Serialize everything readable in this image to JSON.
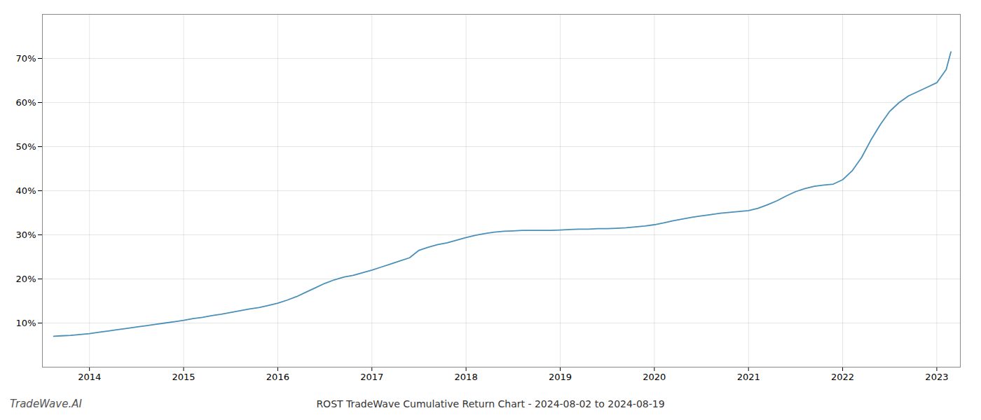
{
  "chart_data": {
    "type": "line",
    "title": "ROST TradeWave Cumulative Return Chart - 2024-08-02 to 2024-08-19",
    "annotations": [
      "TradeWave.AI"
    ],
    "x": [
      2013.62,
      2013.7,
      2013.8,
      2013.9,
      2014.0,
      2014.1,
      2014.2,
      2014.3,
      2014.4,
      2014.5,
      2014.6,
      2014.7,
      2014.8,
      2014.9,
      2015.0,
      2015.1,
      2015.2,
      2015.3,
      2015.4,
      2015.5,
      2015.6,
      2015.7,
      2015.8,
      2015.9,
      2016.0,
      2016.1,
      2016.2,
      2016.3,
      2016.4,
      2016.5,
      2016.6,
      2016.7,
      2016.8,
      2016.9,
      2017.0,
      2017.1,
      2017.2,
      2017.3,
      2017.4,
      2017.5,
      2017.6,
      2017.7,
      2017.8,
      2017.9,
      2018.0,
      2018.1,
      2018.2,
      2018.3,
      2018.4,
      2018.5,
      2018.6,
      2018.7,
      2018.8,
      2018.9,
      2019.0,
      2019.1,
      2019.2,
      2019.3,
      2019.4,
      2019.5,
      2019.6,
      2019.7,
      2019.8,
      2019.9,
      2020.0,
      2020.1,
      2020.2,
      2020.3,
      2020.4,
      2020.5,
      2020.6,
      2020.7,
      2020.8,
      2020.9,
      2021.0,
      2021.1,
      2021.2,
      2021.3,
      2021.4,
      2021.5,
      2021.6,
      2021.7,
      2021.8,
      2021.9,
      2022.0,
      2022.1,
      2022.2,
      2022.3,
      2022.4,
      2022.5,
      2022.6,
      2022.7,
      2022.8,
      2022.9,
      2023.0,
      2023.1,
      2023.15
    ],
    "values": [
      7.0,
      7.1,
      7.2,
      7.4,
      7.6,
      7.9,
      8.2,
      8.5,
      8.8,
      9.1,
      9.4,
      9.7,
      10.0,
      10.3,
      10.6,
      11.0,
      11.3,
      11.7,
      12.0,
      12.4,
      12.8,
      13.2,
      13.5,
      14.0,
      14.5,
      15.2,
      16.0,
      17.0,
      18.0,
      19.0,
      19.8,
      20.4,
      20.8,
      21.4,
      22.0,
      22.7,
      23.4,
      24.1,
      24.8,
      26.5,
      27.2,
      27.8,
      28.2,
      28.8,
      29.4,
      29.9,
      30.3,
      30.6,
      30.8,
      30.9,
      31.0,
      31.0,
      31.0,
      31.0,
      31.1,
      31.2,
      31.3,
      31.3,
      31.4,
      31.4,
      31.5,
      31.6,
      31.8,
      32.0,
      32.3,
      32.7,
      33.2,
      33.6,
      34.0,
      34.3,
      34.6,
      34.9,
      35.1,
      35.3,
      35.5,
      36.0,
      36.8,
      37.7,
      38.8,
      39.8,
      40.5,
      41.0,
      41.3,
      41.5,
      42.5,
      44.5,
      47.5,
      51.5,
      55.0,
      58.0,
      60.0,
      61.5,
      62.5,
      63.5,
      64.5,
      67.5,
      71.5
    ],
    "color": "#4a90b8",
    "xlim": [
      2013.5,
      2023.25
    ],
    "ylim": [
      0,
      80
    ],
    "xticks": [
      2014,
      2015,
      2016,
      2017,
      2018,
      2019,
      2020,
      2021,
      2022,
      2023
    ],
    "yticks": [
      {
        "value": 10,
        "label": "10%"
      },
      {
        "value": 20,
        "label": "20%"
      },
      {
        "value": 30,
        "label": "30%"
      },
      {
        "value": 40,
        "label": "40%"
      },
      {
        "value": 50,
        "label": "50%"
      },
      {
        "value": 60,
        "label": "60%"
      },
      {
        "value": 70,
        "label": "70%"
      }
    ],
    "grid": true
  }
}
